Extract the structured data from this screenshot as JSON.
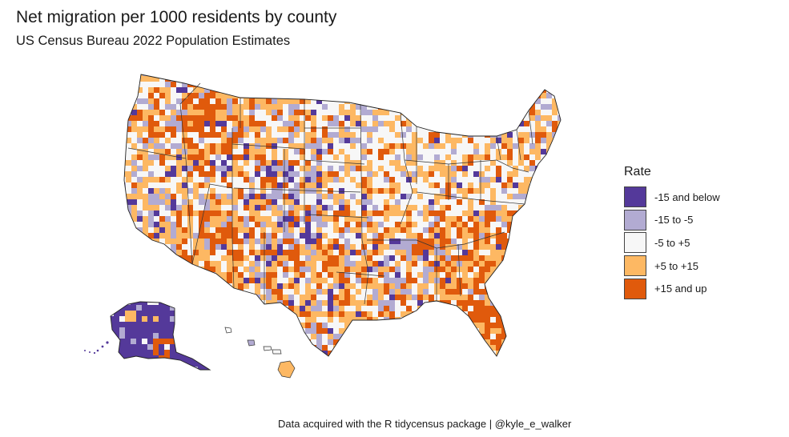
{
  "title": "Net migration per 1000 residents by county",
  "subtitle": "US Census Bureau 2022 Population Estimates",
  "legend": {
    "title": "Rate",
    "items": [
      {
        "label": "-15 and below",
        "color": "#54399a"
      },
      {
        "label": "-15 to -5",
        "color": "#b2abd2"
      },
      {
        "label": "-5 to +5",
        "color": "#f7f7f7"
      },
      {
        "label": "+5 to +15",
        "color": "#fdb863"
      },
      {
        "label": "+15 and up",
        "color": "#e05a0c"
      }
    ]
  },
  "caption": "Data acquired with the R tidycensus package | @kyle_e_walker"
}
